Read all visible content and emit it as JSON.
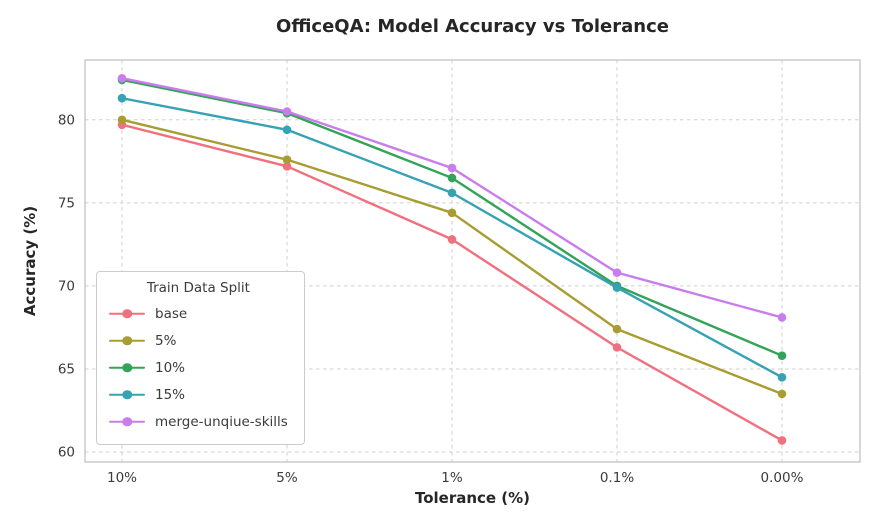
{
  "chart_data": {
    "type": "line",
    "title": "OfficeQA: Model Accuracy vs Tolerance",
    "xlabel": "Tolerance (%)",
    "ylabel": "Accuracy (%)",
    "categories": [
      "10%",
      "5%",
      "1%",
      "0.1%",
      "0.00%"
    ],
    "y_ticks": [
      60,
      65,
      70,
      75,
      80
    ],
    "ylim": [
      59.4,
      83.6
    ],
    "grid": "dashed-both-axes",
    "legend_title": "Train Data Split",
    "legend_position": "lower-left",
    "series": [
      {
        "name": "base",
        "color": "#f1707d",
        "values": [
          79.7,
          77.2,
          72.8,
          66.3,
          60.7
        ]
      },
      {
        "name": "5%",
        "color": "#a89d33",
        "values": [
          80.0,
          77.6,
          74.4,
          67.4,
          63.5
        ]
      },
      {
        "name": "10%",
        "color": "#33a357",
        "values": [
          82.4,
          80.4,
          76.5,
          70.0,
          65.8
        ]
      },
      {
        "name": "15%",
        "color": "#36a2b4",
        "values": [
          81.3,
          79.4,
          75.6,
          69.9,
          64.5
        ]
      },
      {
        "name": "merge-unqiue-skills",
        "color": "#c97ceb",
        "values": [
          82.5,
          80.5,
          77.1,
          70.8,
          68.1
        ]
      }
    ]
  }
}
